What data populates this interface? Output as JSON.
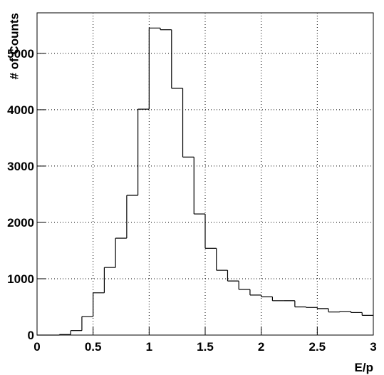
{
  "chart_data": {
    "type": "histogram",
    "x_label": "E/p",
    "y_label": "# of Counts",
    "bins": [
      0,
      0.1,
      0.2,
      0.3,
      0.4,
      0.5,
      0.6,
      0.7,
      0.8,
      0.9,
      1.0,
      1.1,
      1.2,
      1.3,
      1.4,
      1.5,
      1.6,
      1.7,
      1.8,
      1.9,
      2.0,
      2.1,
      2.2,
      2.3,
      2.4,
      2.5,
      2.6,
      2.7,
      2.8,
      2.9,
      3.0
    ],
    "values": [
      0,
      0,
      10,
      80,
      330,
      750,
      1200,
      1720,
      2480,
      4010,
      5450,
      5420,
      4380,
      3160,
      2150,
      1540,
      1150,
      960,
      810,
      710,
      680,
      610,
      610,
      500,
      490,
      470,
      410,
      420,
      400,
      350
    ],
    "color": "#000000",
    "xlim": [
      0,
      3
    ],
    "xticks": [
      0,
      0.5,
      1,
      1.5,
      2,
      2.5,
      3
    ],
    "ylim": [
      0,
      5720
    ],
    "yticks": [
      0,
      1000,
      2000,
      3000,
      4000,
      5000
    ],
    "grid": true
  }
}
